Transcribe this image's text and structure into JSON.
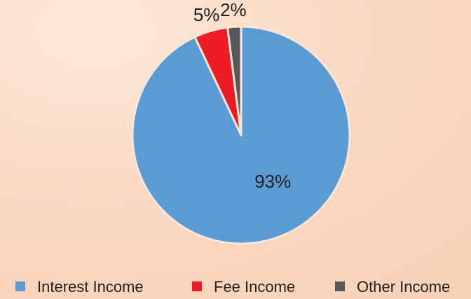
{
  "chart_data": {
    "type": "pie",
    "categories": [
      "Interest Income",
      "Fee Income",
      "Other Income"
    ],
    "values": [
      93,
      5,
      2
    ],
    "value_labels": [
      "93%",
      "5%",
      "2%"
    ],
    "colors": [
      "#5b9bd5",
      "#ed1c24",
      "#555759"
    ],
    "start_angle": "top",
    "direction": "clockwise",
    "legend": "bottom"
  }
}
